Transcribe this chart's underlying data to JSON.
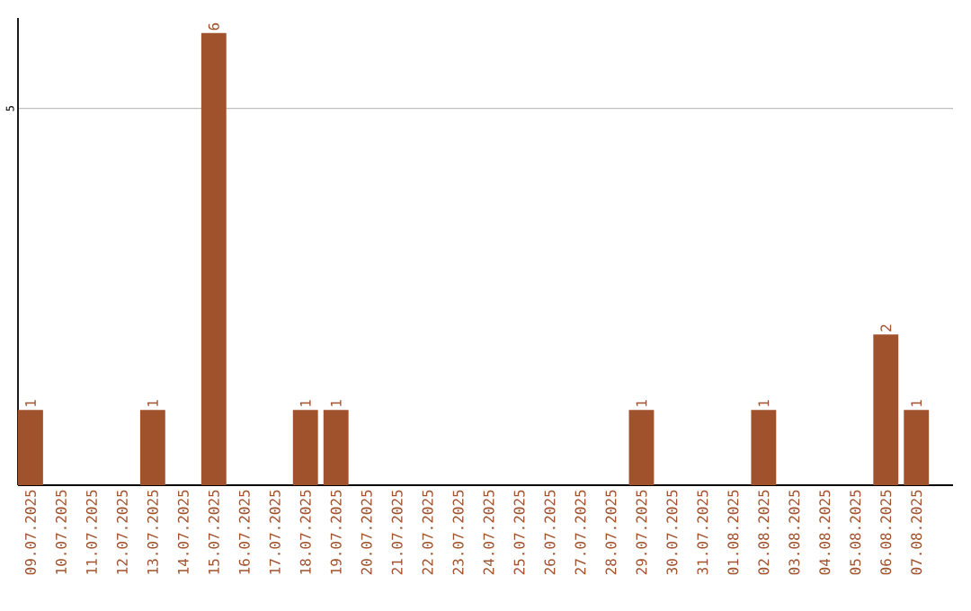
{
  "chart_data": {
    "type": "bar",
    "categories": [
      "09.07.2025",
      "10.07.2025",
      "11.07.2025",
      "12.07.2025",
      "13.07.2025",
      "14.07.2025",
      "15.07.2025",
      "16.07.2025",
      "17.07.2025",
      "18.07.2025",
      "19.07.2025",
      "20.07.2025",
      "21.07.2025",
      "22.07.2025",
      "23.07.2025",
      "24.07.2025",
      "25.07.2025",
      "26.07.2025",
      "27.07.2025",
      "28.07.2025",
      "29.07.2025",
      "30.07.2025",
      "31.07.2025",
      "01.08.2025",
      "02.08.2025",
      "03.08.2025",
      "04.08.2025",
      "05.08.2025",
      "06.08.2025",
      "07.08.2025"
    ],
    "values": [
      1,
      0,
      0,
      0,
      1,
      0,
      6,
      0,
      0,
      1,
      1,
      0,
      0,
      0,
      0,
      0,
      0,
      0,
      0,
      0,
      1,
      0,
      0,
      0,
      1,
      0,
      0,
      0,
      2,
      1
    ],
    "value_labels": [
      "1",
      null,
      null,
      null,
      "1",
      null,
      "6",
      null,
      null,
      "1",
      "1",
      null,
      null,
      null,
      null,
      null,
      null,
      null,
      null,
      null,
      "1",
      null,
      null,
      null,
      "1",
      null,
      null,
      null,
      "2",
      "1"
    ],
    "color": "#a0522d",
    "ylim": [
      0,
      6.2
    ],
    "yticks": [
      5
    ],
    "grid": "y"
  }
}
